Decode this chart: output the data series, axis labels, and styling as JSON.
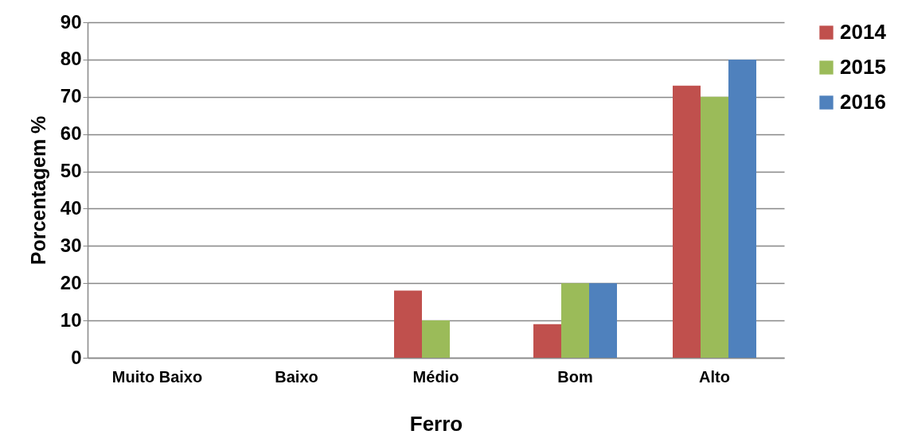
{
  "chart_data": {
    "type": "bar",
    "xlabel": "Ferro",
    "ylabel": "Porcentagem %",
    "categories": [
      "Muito Baixo",
      "Baixo",
      "Médio",
      "Bom",
      "Alto"
    ],
    "series": [
      {
        "name": "2014",
        "color": "#c0504d",
        "values": [
          0,
          0,
          18,
          9,
          73
        ]
      },
      {
        "name": "2015",
        "color": "#9bbb59",
        "values": [
          0,
          0,
          10,
          20,
          70
        ]
      },
      {
        "name": "2016",
        "color": "#4f81bd",
        "values": [
          0,
          0,
          0,
          20,
          80
        ]
      }
    ],
    "ylim": [
      0,
      90
    ],
    "yticks": [
      0,
      10,
      20,
      30,
      40,
      50,
      60,
      70,
      80,
      90
    ],
    "grid": "y",
    "legend": "right"
  }
}
